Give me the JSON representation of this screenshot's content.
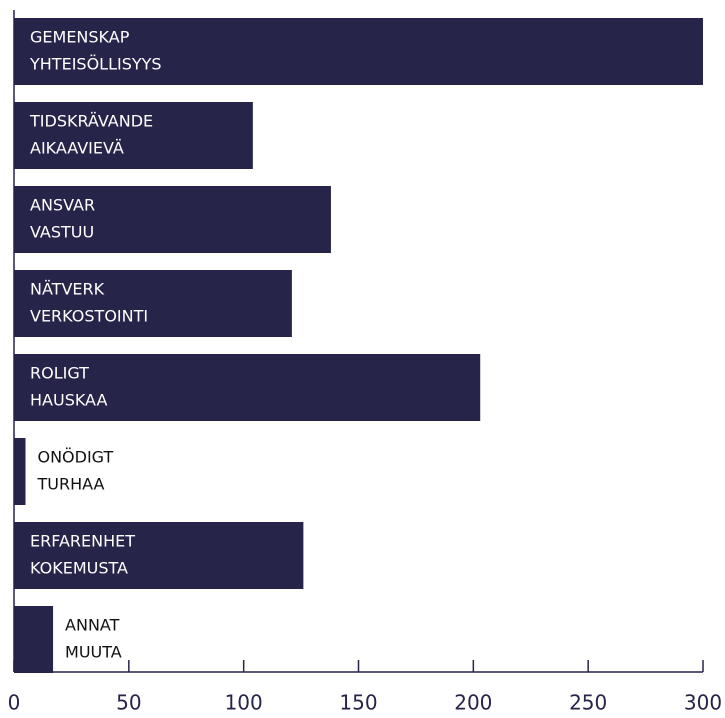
{
  "chart_data": {
    "type": "bar",
    "orientation": "horizontal",
    "categories": [
      [
        "GEMENSKAP",
        "YHTEISÖLLISYYS"
      ],
      [
        "TIDSKRÄVANDE",
        "AIKAAVIEVÄ"
      ],
      [
        "ANSVAR",
        "VASTUU"
      ],
      [
        "NÄTVERK",
        "VERKOSTOINTI"
      ],
      [
        "ROLIGT",
        "HAUSKAA"
      ],
      [
        "ONÖDIGT",
        "TURHAA"
      ],
      [
        "ERFARENHET",
        "KOKEMUSTA"
      ],
      [
        "ANNAT",
        "MUUTA"
      ]
    ],
    "values": [
      300,
      104,
      138,
      121,
      203,
      5,
      126,
      17
    ],
    "color": "#27244a",
    "xlim": [
      0,
      300
    ],
    "xticks": [
      0,
      50,
      100,
      150,
      200,
      250,
      300
    ]
  }
}
